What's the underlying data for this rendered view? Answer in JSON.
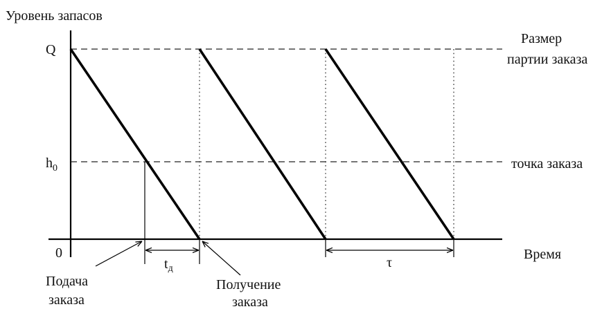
{
  "labels": {
    "y_axis": "Уровень запасов",
    "x_axis": "Время",
    "origin": "0",
    "q_tick": "Q",
    "h0_tick": "h",
    "h0_subscript": "0",
    "order_size_line1": "Размер",
    "order_size_line2": "партии заказа",
    "reorder_point": "точка заказа",
    "order_placed_line1": "Подача",
    "order_placed_line2": "заказа",
    "order_received_line1": "Получение",
    "order_received_line2": "заказа",
    "lead_time": "t",
    "lead_time_subscript": "д",
    "cycle_time": "τ"
  }
}
